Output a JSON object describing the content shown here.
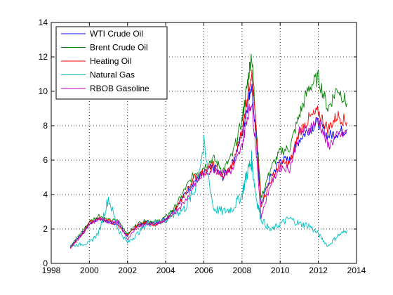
{
  "chart_data": {
    "type": "line",
    "title": "",
    "xlabel": "",
    "ylabel": "",
    "xlim": [
      1998,
      2014
    ],
    "ylim": [
      0,
      14
    ],
    "xticks": [
      1998,
      2000,
      2002,
      2004,
      2006,
      2008,
      2010,
      2012,
      2014
    ],
    "yticks": [
      0,
      2,
      4,
      6,
      8,
      10,
      12,
      14
    ],
    "grid": true,
    "legend_position": "top-left",
    "x": [
      1999.0,
      1999.5,
      2000.0,
      2000.5,
      2001.0,
      2001.5,
      2002.0,
      2002.5,
      2003.0,
      2003.5,
      2004.0,
      2004.5,
      2005.0,
      2005.5,
      2006.0,
      2006.5,
      2007.0,
      2007.5,
      2008.0,
      2008.25,
      2008.5,
      2008.75,
      2009.0,
      2009.5,
      2010.0,
      2010.5,
      2011.0,
      2011.5,
      2012.0,
      2012.5,
      2013.0,
      2013.5
    ],
    "series": [
      {
        "name": "WTI Crude Oil",
        "color": "#0000ff",
        "values": [
          1.0,
          1.6,
          2.3,
          2.6,
          2.4,
          2.3,
          1.6,
          2.2,
          2.4,
          2.3,
          2.6,
          3.2,
          4.0,
          4.8,
          5.2,
          5.6,
          5.0,
          5.8,
          7.5,
          9.0,
          10.5,
          7.0,
          3.5,
          5.0,
          6.0,
          6.0,
          7.2,
          7.8,
          8.2,
          7.4,
          7.6,
          7.8
        ]
      },
      {
        "name": "Brent Crude Oil",
        "color": "#008000",
        "values": [
          1.0,
          1.7,
          2.4,
          2.8,
          2.5,
          2.5,
          1.7,
          2.3,
          2.5,
          2.4,
          2.7,
          3.3,
          4.3,
          5.2,
          5.6,
          6.1,
          5.4,
          6.3,
          8.3,
          10.2,
          12.2,
          7.9,
          3.8,
          5.5,
          6.5,
          6.7,
          8.6,
          10.2,
          10.8,
          9.0,
          10.2,
          9.3
        ]
      },
      {
        "name": "Heating Oil",
        "color": "#ff0000",
        "values": [
          0.9,
          1.5,
          2.4,
          2.6,
          2.5,
          2.2,
          1.6,
          2.2,
          2.4,
          2.2,
          2.5,
          3.1,
          4.0,
          5.0,
          5.3,
          5.7,
          5.0,
          5.7,
          7.7,
          9.5,
          11.2,
          7.6,
          3.4,
          4.8,
          5.8,
          5.8,
          7.6,
          8.4,
          8.8,
          7.8,
          8.6,
          8.2
        ]
      },
      {
        "name": "Natural Gas",
        "color": "#00bfbf",
        "values": [
          1.0,
          1.1,
          1.2,
          1.8,
          3.8,
          2.0,
          1.2,
          1.7,
          2.3,
          2.4,
          2.5,
          2.9,
          3.2,
          4.2,
          6.8,
          3.2,
          3.0,
          3.2,
          4.0,
          5.2,
          6.0,
          3.8,
          2.6,
          1.9,
          2.3,
          2.6,
          2.3,
          2.2,
          1.7,
          1.0,
          1.6,
          1.9
        ]
      },
      {
        "name": "RBOB Gasoline",
        "color": "#bf00bf",
        "values": [
          0.9,
          1.5,
          2.2,
          2.6,
          2.4,
          2.4,
          1.4,
          2.1,
          2.3,
          2.3,
          2.5,
          3.0,
          3.6,
          4.6,
          5.2,
          5.5,
          5.2,
          5.4,
          6.8,
          8.4,
          9.4,
          6.4,
          2.7,
          4.6,
          5.6,
          5.5,
          7.6,
          7.8,
          8.4,
          6.8,
          7.4,
          7.6
        ]
      }
    ]
  }
}
